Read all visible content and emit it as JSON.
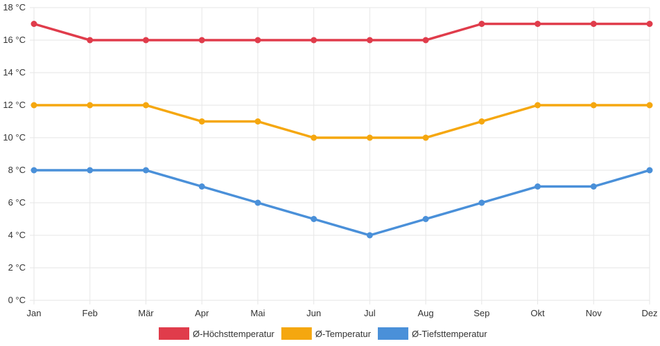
{
  "chart_data": {
    "type": "line",
    "categories": [
      "Jan",
      "Feb",
      "Mär",
      "Apr",
      "Mai",
      "Jun",
      "Jul",
      "Aug",
      "Sep",
      "Okt",
      "Nov",
      "Dez"
    ],
    "y_ticks": [
      "0 °C",
      "2 °C",
      "4 °C",
      "6 °C",
      "8 °C",
      "10 °C",
      "12 °C",
      "14 °C",
      "16 °C",
      "18 °C"
    ],
    "ylim": [
      0,
      18
    ],
    "y_step": 2,
    "grid": true,
    "legend_position": "bottom-center",
    "series": [
      {
        "name": "Ø-Höchsttemperatur",
        "color": "#e03c4b",
        "values": [
          17,
          16,
          16,
          16,
          16,
          16,
          16,
          16,
          17,
          17,
          17,
          17
        ]
      },
      {
        "name": "Ø-Temperatur",
        "color": "#f5a70f",
        "values": [
          12,
          12,
          12,
          11,
          11,
          10,
          10,
          10,
          11,
          12,
          12,
          12
        ]
      },
      {
        "name": "Ø-Tiefsttemperatur",
        "color": "#4a90d9",
        "values": [
          8,
          8,
          8,
          7,
          6,
          5,
          4,
          5,
          6,
          7,
          7,
          8
        ]
      }
    ]
  }
}
